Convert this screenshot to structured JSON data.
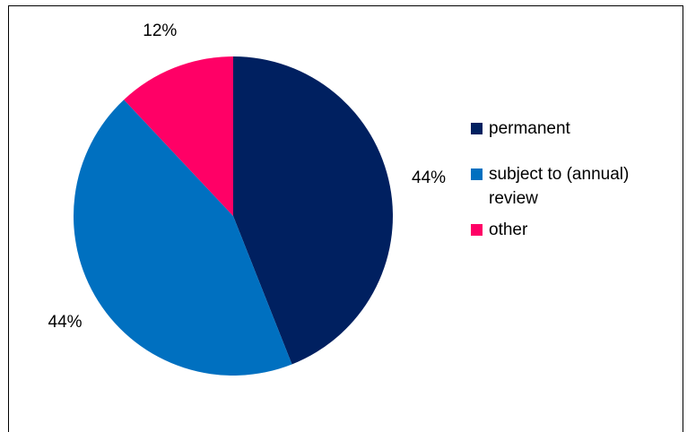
{
  "chart_data": {
    "type": "pie",
    "title": "",
    "slices": [
      {
        "label": "permanent",
        "value": 44,
        "display": "44%",
        "color": "#002060"
      },
      {
        "label": "subject to (annual) review",
        "value": 44,
        "display": "44%",
        "color": "#0070C0"
      },
      {
        "label": "other",
        "value": 12,
        "display": "12%",
        "color": "#FF0066"
      }
    ],
    "legend_position": "right",
    "start_angle_deg": 0,
    "direction": "clockwise"
  }
}
